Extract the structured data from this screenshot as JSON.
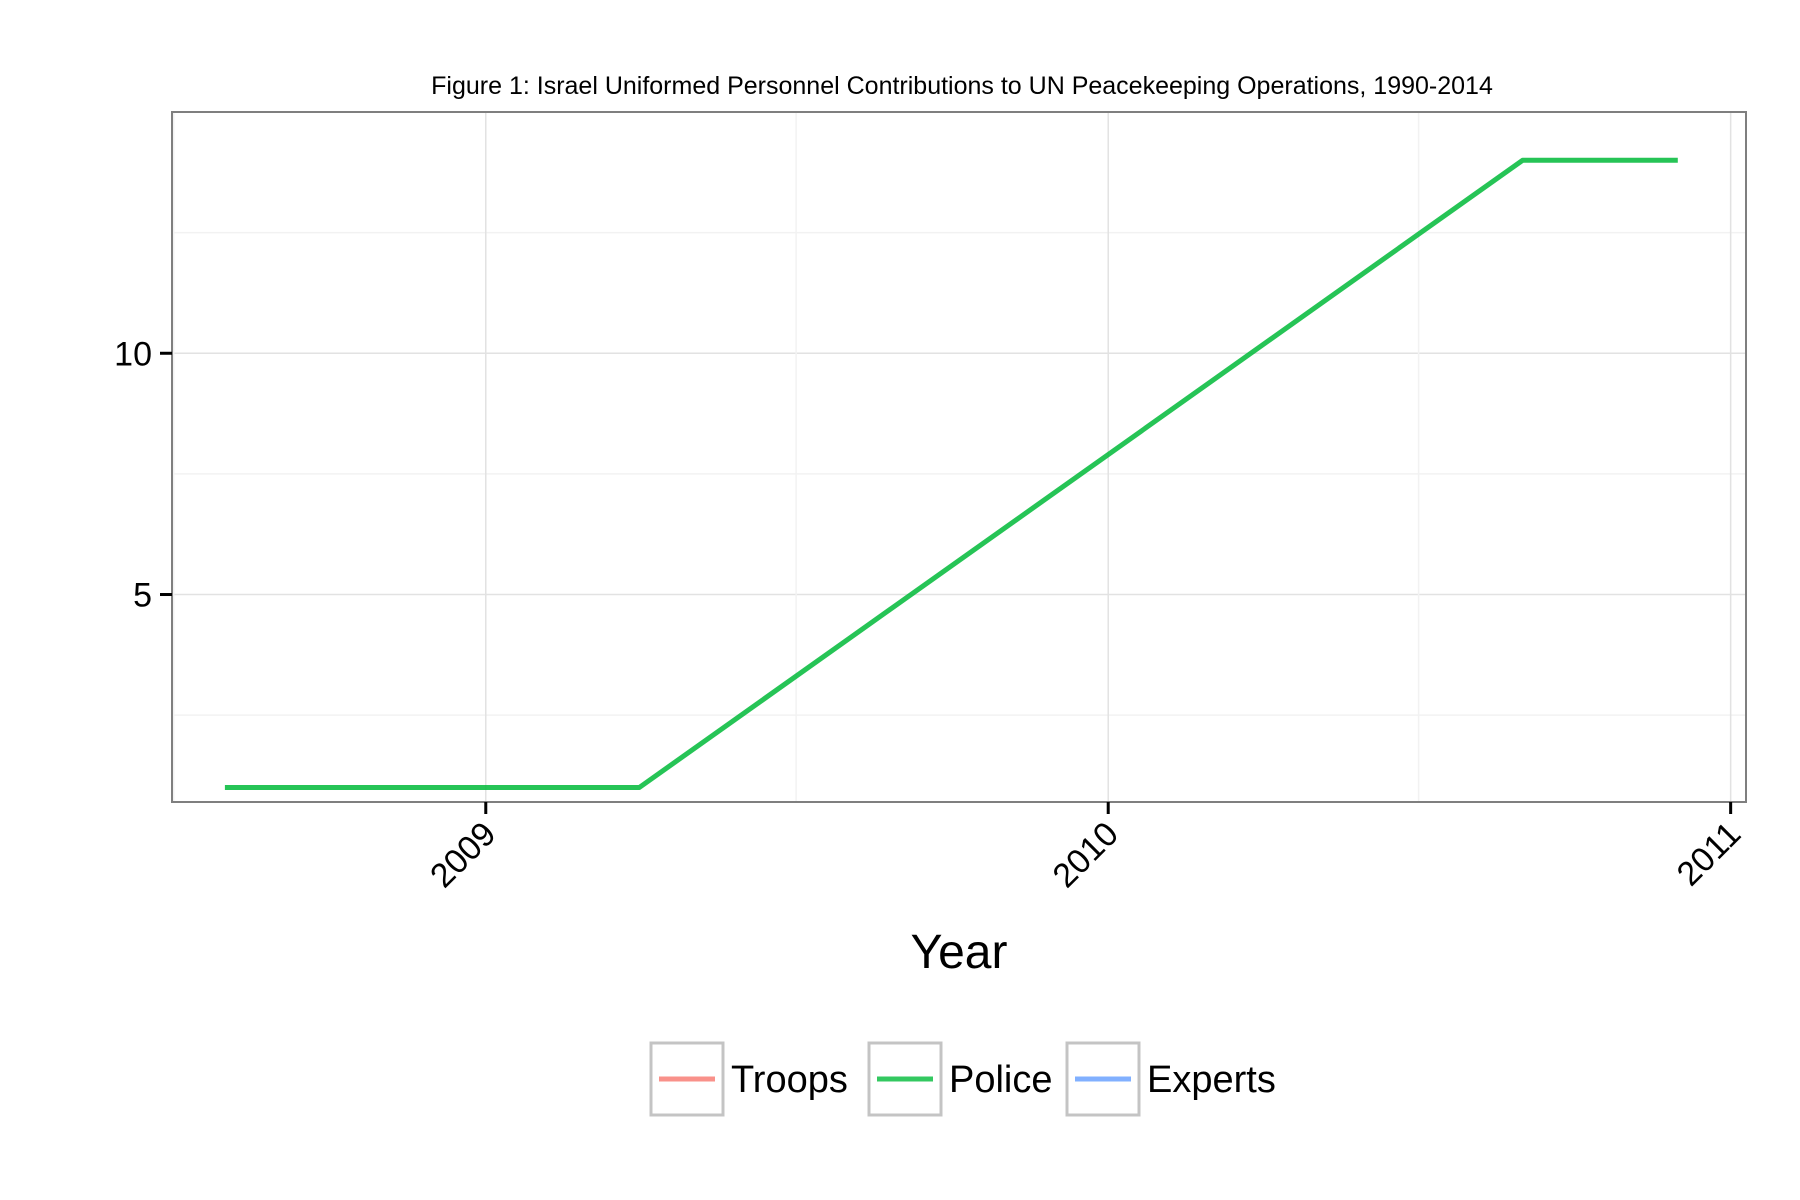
{
  "chart_data": {
    "type": "line",
    "title": "Figure 1: Israel Uniformed Personnel Contributions to UN Peacekeeping Operations, 1990-2014",
    "xlabel": "Year",
    "ylabel": "",
    "x_ticks": [
      "2009",
      "2010",
      "2011"
    ],
    "y_ticks": [
      5,
      10
    ],
    "xlim": [
      "2008-07-01",
      "2011-01-10"
    ],
    "ylim": [
      0.7,
      15
    ],
    "grid": true,
    "legend_position": "bottom",
    "series": [
      {
        "name": "Troops",
        "color": "#F8766D",
        "points": []
      },
      {
        "name": "Police",
        "color": "#00BA38",
        "points": [
          {
            "x": "2008-08-01",
            "y": 1
          },
          {
            "x": "2009-04-01",
            "y": 1
          },
          {
            "x": "2010-09-01",
            "y": 14
          },
          {
            "x": "2010-12-01",
            "y": 14
          }
        ]
      },
      {
        "name": "Experts",
        "color": "#619CFF",
        "points": []
      }
    ]
  }
}
